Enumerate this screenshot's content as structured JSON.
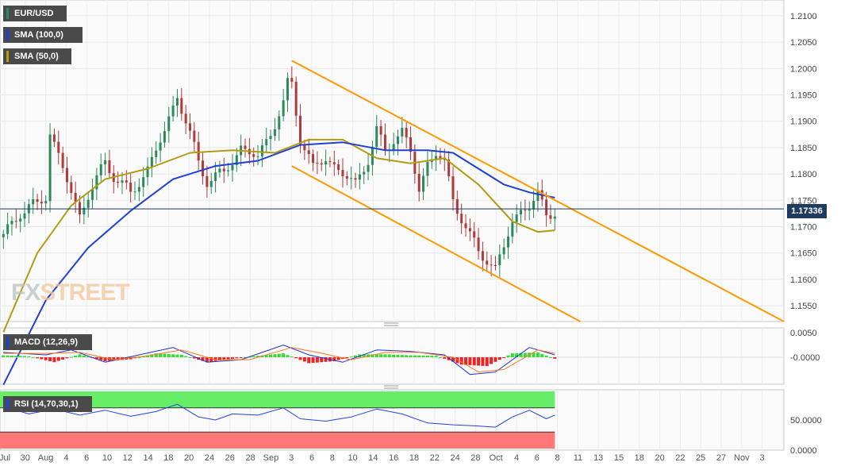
{
  "instrument": "EUR/USD",
  "watermark": {
    "part1": "FX",
    "part2": "STREET"
  },
  "indicators": {
    "sma100": {
      "label": "SMA (100,0)",
      "color": "#1f3fd6"
    },
    "sma50": {
      "label": "SMA (50,0)",
      "color": "#b39b12"
    },
    "macd": {
      "label": "MACD (12,26,9)"
    },
    "rsi": {
      "label": "RSI (14,70,30,1)"
    }
  },
  "price": {
    "current": "1.17336",
    "current_value": 1.17336
  },
  "colors": {
    "up": "#2a8a5a",
    "down": "#b03a3a",
    "trend": "#ff9900",
    "macd_pos": "#33dd33",
    "macd_neg": "#ee2222",
    "rsi_overbought": "#66ee66",
    "rsi_oversold": "#ff7777",
    "rsi_line": "#2244dd"
  },
  "chart_data": [
    {
      "type": "candlestick",
      "panel": "price",
      "ylim": [
        1.152,
        1.213
      ],
      "y_ticks": [
        "1.1550",
        "1.1600",
        "1.1650",
        "1.1700",
        "1.1750",
        "1.1800",
        "1.1850",
        "1.1900",
        "1.1950",
        "1.2000",
        "1.2050",
        "1.2100"
      ],
      "x_ticks": [
        "Jul",
        "30",
        "Aug",
        "4",
        "6",
        "10",
        "12",
        "14",
        "18",
        "20",
        "24",
        "26",
        "28",
        "Sep",
        "3",
        "6",
        "8",
        "10",
        "14",
        "16",
        "18",
        "22",
        "24",
        "28",
        "Oct",
        "4",
        "6",
        "8",
        "11",
        "13",
        "15",
        "18",
        "20",
        "22",
        "25",
        "27",
        "Nov",
        "3"
      ],
      "close_path": [
        {
          "x": 0.0,
          "close": 1.168
        },
        {
          "x": 2.0,
          "close": 1.173
        },
        {
          "x": 4.0,
          "close": 1.174
        },
        {
          "x": 5.0,
          "close": 1.176
        },
        {
          "x": 5.5,
          "close": 1.188
        },
        {
          "x": 7.0,
          "close": 1.181
        },
        {
          "x": 9.0,
          "close": 1.172
        },
        {
          "x": 10.0,
          "close": 1.176
        },
        {
          "x": 12.0,
          "close": 1.182
        },
        {
          "x": 15.0,
          "close": 1.176
        },
        {
          "x": 17.0,
          "close": 1.181
        },
        {
          "x": 19.0,
          "close": 1.188
        },
        {
          "x": 20.5,
          "close": 1.195
        },
        {
          "x": 21.5,
          "close": 1.19
        },
        {
          "x": 23.0,
          "close": 1.182
        },
        {
          "x": 24.0,
          "close": 1.179
        },
        {
          "x": 26.0,
          "close": 1.18
        },
        {
          "x": 28.0,
          "close": 1.185
        },
        {
          "x": 30.0,
          "close": 1.183
        },
        {
          "x": 33.0,
          "close": 1.193
        },
        {
          "x": 33.8,
          "close": 1.199
        },
        {
          "x": 35.0,
          "close": 1.187
        },
        {
          "x": 36.5,
          "close": 1.181
        },
        {
          "x": 38.0,
          "close": 1.183
        },
        {
          "x": 40.0,
          "close": 1.18
        },
        {
          "x": 41.5,
          "close": 1.178
        },
        {
          "x": 43.0,
          "close": 1.183
        },
        {
          "x": 44.0,
          "close": 1.188
        },
        {
          "x": 45.0,
          "close": 1.184
        },
        {
          "x": 46.0,
          "close": 1.187
        },
        {
          "x": 47.0,
          "close": 1.188
        },
        {
          "x": 48.0,
          "close": 1.184
        },
        {
          "x": 49.0,
          "close": 1.177
        },
        {
          "x": 50.0,
          "close": 1.182
        },
        {
          "x": 51.0,
          "close": 1.184
        },
        {
          "x": 52.0,
          "close": 1.182
        },
        {
          "x": 53.0,
          "close": 1.175
        },
        {
          "x": 54.0,
          "close": 1.172
        },
        {
          "x": 55.0,
          "close": 1.168
        },
        {
          "x": 56.0,
          "close": 1.165
        },
        {
          "x": 57.0,
          "close": 1.164
        },
        {
          "x": 58.0,
          "close": 1.162
        },
        {
          "x": 59.0,
          "close": 1.166
        },
        {
          "x": 60.0,
          "close": 1.171
        },
        {
          "x": 61.0,
          "close": 1.173
        },
        {
          "x": 62.0,
          "close": 1.174
        },
        {
          "x": 63.0,
          "close": 1.176
        },
        {
          "x": 64.0,
          "close": 1.172
        },
        {
          "x": 65.0,
          "close": 1.1733
        }
      ],
      "sma100": [
        {
          "x": 0,
          "y": 1.14
        },
        {
          "x": 5,
          "y": 1.156
        },
        {
          "x": 10,
          "y": 1.166
        },
        {
          "x": 15,
          "y": 1.173
        },
        {
          "x": 20,
          "y": 1.179
        },
        {
          "x": 25,
          "y": 1.1815
        },
        {
          "x": 30,
          "y": 1.1825
        },
        {
          "x": 35,
          "y": 1.1855
        },
        {
          "x": 40,
          "y": 1.186
        },
        {
          "x": 45,
          "y": 1.1845
        },
        {
          "x": 50,
          "y": 1.1845
        },
        {
          "x": 53,
          "y": 1.184
        },
        {
          "x": 56,
          "y": 1.181
        },
        {
          "x": 59,
          "y": 1.178
        },
        {
          "x": 62,
          "y": 1.1765
        },
        {
          "x": 65,
          "y": 1.1755
        }
      ],
      "sma50": [
        {
          "x": 0,
          "y": 1.15
        },
        {
          "x": 4,
          "y": 1.165
        },
        {
          "x": 8,
          "y": 1.174
        },
        {
          "x": 12,
          "y": 1.179
        },
        {
          "x": 17,
          "y": 1.181
        },
        {
          "x": 22,
          "y": 1.184
        },
        {
          "x": 27,
          "y": 1.1845
        },
        {
          "x": 32,
          "y": 1.184
        },
        {
          "x": 36,
          "y": 1.1865
        },
        {
          "x": 40,
          "y": 1.1865
        },
        {
          "x": 44,
          "y": 1.183
        },
        {
          "x": 48,
          "y": 1.182
        },
        {
          "x": 52,
          "y": 1.183
        },
        {
          "x": 56,
          "y": 1.178
        },
        {
          "x": 60,
          "y": 1.171
        },
        {
          "x": 63,
          "y": 1.169
        },
        {
          "x": 65,
          "y": 1.1693
        }
      ],
      "trend_lines": [
        {
          "x1": 34,
          "y1": 1.2015,
          "x2": 92,
          "y2": 1.152
        },
        {
          "x1": 34,
          "y1": 1.1815,
          "x2": 68,
          "y2": 1.152
        }
      ]
    },
    {
      "type": "macd",
      "panel": "macd",
      "ylim": [
        -0.0055,
        0.006
      ],
      "y_ticks": [
        "0.0050",
        "-0.0000"
      ],
      "hist_path": [
        {
          "x": 0,
          "y": 0.0004
        },
        {
          "x": 3,
          "y": 0.0002
        },
        {
          "x": 6,
          "y": -0.001
        },
        {
          "x": 9,
          "y": 0.0006
        },
        {
          "x": 12,
          "y": -0.0008
        },
        {
          "x": 15,
          "y": -0.0004
        },
        {
          "x": 18,
          "y": 0.0008
        },
        {
          "x": 21,
          "y": 0.0005
        },
        {
          "x": 24,
          "y": -0.001
        },
        {
          "x": 27,
          "y": -0.0003
        },
        {
          "x": 30,
          "y": 0.0003
        },
        {
          "x": 33,
          "y": 0.0008
        },
        {
          "x": 36,
          "y": -0.0012
        },
        {
          "x": 39,
          "y": -0.0008
        },
        {
          "x": 42,
          "y": 0.0006
        },
        {
          "x": 45,
          "y": 0.0006
        },
        {
          "x": 48,
          "y": 0.0004
        },
        {
          "x": 51,
          "y": 0.0003
        },
        {
          "x": 54,
          "y": -0.0015
        },
        {
          "x": 57,
          "y": -0.0018
        },
        {
          "x": 60,
          "y": 0.0008
        },
        {
          "x": 63,
          "y": 0.001
        },
        {
          "x": 65,
          "y": -0.0003
        }
      ],
      "macd_line": [
        {
          "x": 0,
          "y": 0.001
        },
        {
          "x": 5,
          "y": 0.0005
        },
        {
          "x": 8,
          "y": 0.0015
        },
        {
          "x": 12,
          "y": -0.001
        },
        {
          "x": 16,
          "y": 0.0005
        },
        {
          "x": 20,
          "y": 0.002
        },
        {
          "x": 24,
          "y": -0.001
        },
        {
          "x": 28,
          "y": -0.0005
        },
        {
          "x": 33,
          "y": 0.0025
        },
        {
          "x": 36,
          "y": 0.0005
        },
        {
          "x": 40,
          "y": -0.001
        },
        {
          "x": 44,
          "y": 0.0015
        },
        {
          "x": 48,
          "y": 0.0012
        },
        {
          "x": 52,
          "y": 0.0005
        },
        {
          "x": 55,
          "y": -0.0035
        },
        {
          "x": 58,
          "y": -0.003
        },
        {
          "x": 62,
          "y": 0.002
        },
        {
          "x": 65,
          "y": 0.0005
        }
      ],
      "signal_line": [
        {
          "x": 0,
          "y": 0.0008
        },
        {
          "x": 5,
          "y": 0.0008
        },
        {
          "x": 9,
          "y": 0.001
        },
        {
          "x": 13,
          "y": -0.0005
        },
        {
          "x": 17,
          "y": 0.0003
        },
        {
          "x": 21,
          "y": 0.0015
        },
        {
          "x": 25,
          "y": -0.0005
        },
        {
          "x": 29,
          "y": -0.0005
        },
        {
          "x": 34,
          "y": 0.002
        },
        {
          "x": 37,
          "y": 0.001
        },
        {
          "x": 41,
          "y": -0.0005
        },
        {
          "x": 45,
          "y": 0.001
        },
        {
          "x": 49,
          "y": 0.001
        },
        {
          "x": 53,
          "y": 0.0
        },
        {
          "x": 56,
          "y": -0.003
        },
        {
          "x": 59,
          "y": -0.0025
        },
        {
          "x": 63,
          "y": 0.0015
        },
        {
          "x": 65,
          "y": 0.0008
        }
      ]
    },
    {
      "type": "rsi",
      "panel": "rsi",
      "ylim": [
        0,
        100
      ],
      "y_ticks": [
        "50.0000",
        "0.0000"
      ],
      "overbought": 70,
      "oversold": 30,
      "rsi_path": [
        {
          "x": 0,
          "y": 72
        },
        {
          "x": 3,
          "y": 60
        },
        {
          "x": 6,
          "y": 68
        },
        {
          "x": 9,
          "y": 58
        },
        {
          "x": 12,
          "y": 66
        },
        {
          "x": 15,
          "y": 56
        },
        {
          "x": 18,
          "y": 64
        },
        {
          "x": 20.5,
          "y": 76
        },
        {
          "x": 23,
          "y": 55
        },
        {
          "x": 25,
          "y": 50
        },
        {
          "x": 27,
          "y": 60
        },
        {
          "x": 30,
          "y": 58
        },
        {
          "x": 33,
          "y": 70
        },
        {
          "x": 35,
          "y": 52
        },
        {
          "x": 38,
          "y": 48
        },
        {
          "x": 41,
          "y": 55
        },
        {
          "x": 44,
          "y": 68
        },
        {
          "x": 47,
          "y": 60
        },
        {
          "x": 50,
          "y": 45
        },
        {
          "x": 53,
          "y": 42
        },
        {
          "x": 56,
          "y": 40
        },
        {
          "x": 58,
          "y": 38
        },
        {
          "x": 60,
          "y": 55
        },
        {
          "x": 62,
          "y": 66
        },
        {
          "x": 64,
          "y": 52
        },
        {
          "x": 65,
          "y": 58
        }
      ]
    }
  ]
}
